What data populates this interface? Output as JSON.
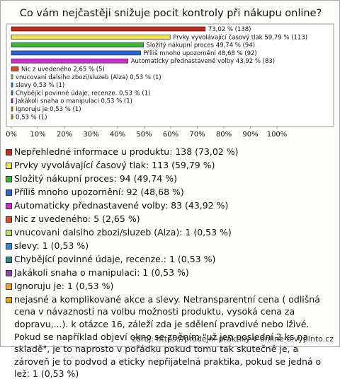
{
  "chart_data": {
    "type": "hbar",
    "title": "Co vám nejčastěji snižuje pocit kontroly při nákupu online?",
    "categories": [
      "Nepřehledné informace u produktu: 138 (73,02 %)",
      "Prvky vyvolávající časový tlak: 113 (59,79 %)",
      "Složitý nákupní proces: 94 (49,74 %)",
      "Příliš mnoho upozornění: 92 (48,68 %)",
      "Automaticky přednastavené volby: 83 (43,92 %)",
      "Nic z uvedeného: 5 (2,65 %)",
      "vnucovani dalsiho zbozi/sluzeb (Alza): 1 (0,53 %)",
      "slevy: 1 (0,53 %)",
      "Chybějící povinné údaje, recenze.: 1 (0,53 %)",
      "Jakákoli snaha o manipulaci: 1 (0,53 %)",
      "Ignoruju je: 1 (0,53 %)",
      "nejasné a komplikované akce a slevy. Netransparentní cena ( odlišná cena v návaznosti na volbu možnosti produktu, vysoká cena za dopravu,...). k otázce 16, záleží zda je sdělení pravdivé nebo lživé. Pokud se například objeví okno se zněním \"už jen poslední 2 ks na skladě\", je to naprosto v pořádku pokud tomu tak skutečně je, a zároveň je to podvod a eticky nepřijatelná praktika, pokud se jedná o lež: 1 (0,53 %)"
    ],
    "values": [
      73.02,
      59.79,
      49.74,
      48.68,
      43.92,
      2.65,
      0.53,
      0.53,
      0.53,
      0.53,
      0.53,
      0.53
    ],
    "value_labels": [
      "73,02 % (138)",
      "Prvky vyvolávající časový tlak 59,79 % (113)",
      "Složitý nákupní proces 49,74 % (94)",
      "Příliš mnoho upozornění 48,68 % (92)",
      "Automaticky přednastavené volby 43,92 % (83)",
      "Nic z uvedeného 2,65 % (5)",
      "vnucovani dalsiho zbozi/sluzeb (Alza) 0,53 % (1)",
      "slevy 0,53 % (1)",
      "Chybějící povinné údaje, recenze. 0,53 % (1)",
      "Jakákoli snaha o manipulaci 0,53 % (1)",
      "Ignoruju je 0,53 % (1)",
      "0,53 % (1)"
    ],
    "colors": [
      "#c8281e",
      "#f2e84a",
      "#38b838",
      "#2a64d8",
      "#d42cd4",
      "#e04a1e",
      "#b4e26a",
      "#2a8ae6",
      "#2a8a8a",
      "#8a44aa",
      "#f2a42a",
      "#e8a80a"
    ],
    "xlim": [
      0,
      100
    ],
    "xticks": [
      {
        "value": 0,
        "label": "0%"
      },
      {
        "value": 10,
        "label": "10%"
      },
      {
        "value": 20,
        "label": "20%"
      },
      {
        "value": 30,
        "label": "30%"
      },
      {
        "value": 40,
        "label": "40%"
      },
      {
        "value": 50,
        "label": "50%"
      },
      {
        "value": 60,
        "label": "60%"
      },
      {
        "value": 70,
        "label": "70%"
      },
      {
        "value": 80,
        "label": "80%"
      },
      {
        "value": 90,
        "label": "90%"
      },
      {
        "value": 100,
        "label": "100%"
      }
    ],
    "source": "zdroj: https://prodejni-praktiky-v-online-o.vyplnto.cz"
  }
}
